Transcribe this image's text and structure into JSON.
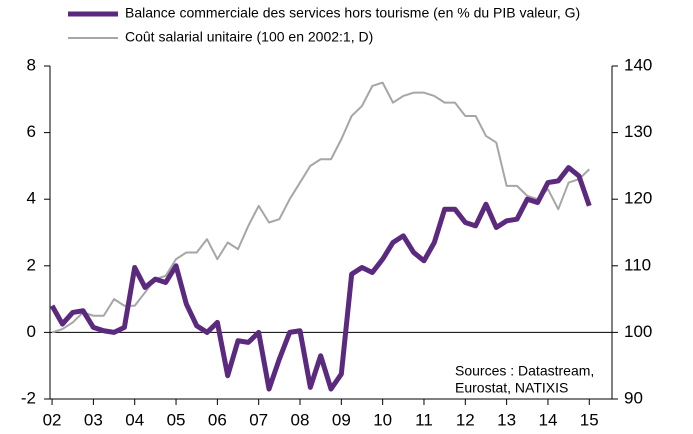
{
  "chart_data": {
    "type": "line",
    "x": [
      2002,
      2002.25,
      2002.5,
      2002.75,
      2003,
      2003.25,
      2003.5,
      2003.75,
      2004,
      2004.25,
      2004.5,
      2004.75,
      2005,
      2005.25,
      2005.5,
      2005.75,
      2006,
      2006.25,
      2006.5,
      2006.75,
      2007,
      2007.25,
      2007.5,
      2007.75,
      2008,
      2008.25,
      2008.5,
      2008.75,
      2009,
      2009.25,
      2009.5,
      2009.75,
      2010,
      2010.25,
      2010.5,
      2010.75,
      2011,
      2011.25,
      2011.5,
      2011.75,
      2012,
      2012.25,
      2012.5,
      2012.75,
      2013,
      2013.25,
      2013.5,
      2013.75,
      2014,
      2014.25,
      2014.5,
      2014.75,
      2015
    ],
    "series": [
      {
        "name": "Balance commerciale des services hors tourisme (en % du PIB valeur, G)",
        "color": "#5b2a7e",
        "axis": "y",
        "values": [
          0.8,
          0.25,
          0.6,
          0.65,
          0.15,
          0.05,
          0.0,
          0.15,
          1.95,
          1.35,
          1.6,
          1.5,
          2.0,
          0.85,
          0.2,
          0.0,
          0.3,
          -1.3,
          -0.25,
          -0.3,
          0.0,
          -1.7,
          -0.8,
          0.0,
          0.05,
          -1.65,
          -0.7,
          -1.7,
          -1.25,
          1.75,
          1.95,
          1.8,
          2.2,
          2.7,
          2.9,
          2.4,
          2.15,
          2.7,
          3.7,
          3.7,
          3.3,
          3.2,
          3.85,
          3.15,
          3.35,
          3.4,
          4.0,
          3.9,
          4.5,
          4.55,
          4.95,
          4.7,
          3.8
        ]
      },
      {
        "name": "Coût salarial unitaire (100 en 2002:1, D)",
        "color": "#a6a6a6",
        "axis": "y2",
        "values": [
          100,
          100.5,
          101.5,
          103,
          102.5,
          102.5,
          105,
          104,
          104,
          106,
          108,
          108.5,
          111,
          112,
          112,
          114,
          111,
          113.5,
          112.5,
          116,
          119,
          116.5,
          117,
          120,
          122.5,
          125,
          126,
          126,
          129,
          132.5,
          134,
          137,
          137.5,
          134.5,
          135.5,
          136,
          136,
          135.5,
          134.5,
          134.5,
          132.5,
          132.5,
          129.5,
          128.5,
          122,
          122,
          120.5,
          120,
          121.5,
          118.5,
          122.5,
          123,
          124.5
        ]
      }
    ],
    "xlim": [
      2001.95,
      2015.55
    ],
    "xticks": [
      {
        "value": 2002,
        "label": "02"
      },
      {
        "value": 2003,
        "label": "03"
      },
      {
        "value": 2004,
        "label": "04"
      },
      {
        "value": 2005,
        "label": "05"
      },
      {
        "value": 2006,
        "label": "06"
      },
      {
        "value": 2007,
        "label": "07"
      },
      {
        "value": 2008,
        "label": "08"
      },
      {
        "value": 2009,
        "label": "09"
      },
      {
        "value": 2010,
        "label": "10"
      },
      {
        "value": 2011,
        "label": "11"
      },
      {
        "value": 2012,
        "label": "12"
      },
      {
        "value": 2013,
        "label": "13"
      },
      {
        "value": 2014,
        "label": "14"
      },
      {
        "value": 2015,
        "label": "15"
      }
    ],
    "ylim": [
      -2,
      8
    ],
    "yticks": [
      -2,
      0,
      2,
      4,
      6,
      8
    ],
    "y2lim": [
      90,
      140
    ],
    "y2ticks": [
      90,
      100,
      110,
      120,
      130,
      140
    ],
    "annotations": [
      "Sources : Datastream,",
      "Eurostat, NATIXIS"
    ]
  }
}
